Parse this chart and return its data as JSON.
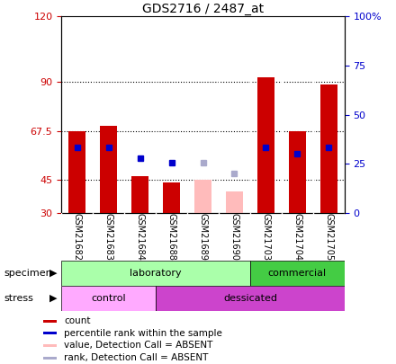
{
  "title": "GDS2716 / 2487_at",
  "samples": [
    "GSM21682",
    "GSM21683",
    "GSM21684",
    "GSM21688",
    "GSM21689",
    "GSM21690",
    "GSM21703",
    "GSM21704",
    "GSM21705"
  ],
  "bar_values": [
    67.5,
    70.0,
    47.0,
    44.0,
    null,
    null,
    92.0,
    67.5,
    89.0
  ],
  "bar_color_normal": "#cc0000",
  "bar_color_absent": "#ffbbbb",
  "absent_bar_values": [
    null,
    null,
    null,
    null,
    45.0,
    40.0,
    null,
    null,
    null
  ],
  "rank_dots_normal": [
    60.0,
    60.0,
    55.0,
    53.0,
    null,
    null,
    60.0,
    57.0,
    60.0
  ],
  "rank_dots_absent": [
    null,
    null,
    null,
    null,
    53.0,
    48.0,
    null,
    null,
    null
  ],
  "dot_color_normal": "#0000cc",
  "dot_color_absent": "#aaaacc",
  "ylim_left": [
    30,
    120
  ],
  "ylim_right": [
    0,
    100
  ],
  "left_yticks": [
    30,
    45,
    67.5,
    90,
    120
  ],
  "right_yticks": [
    0,
    25,
    50,
    75,
    100
  ],
  "left_ytick_labels": [
    "30",
    "45",
    "67.5",
    "90",
    "120"
  ],
  "right_ytick_labels": [
    "0",
    "25",
    "50",
    "75",
    "100%"
  ],
  "grid_lines": [
    45,
    67.5,
    90
  ],
  "specimen_groups": [
    {
      "label": "laboratory",
      "start": 0,
      "end": 6,
      "color": "#aaffaa"
    },
    {
      "label": "commercial",
      "start": 6,
      "end": 9,
      "color": "#44cc44"
    }
  ],
  "stress_groups": [
    {
      "label": "control",
      "start": 0,
      "end": 3,
      "color": "#ffaaff"
    },
    {
      "label": "dessicated",
      "start": 3,
      "end": 9,
      "color": "#cc44cc"
    }
  ],
  "legend_items": [
    {
      "color": "#cc0000",
      "label": "count"
    },
    {
      "color": "#0000cc",
      "label": "percentile rank within the sample"
    },
    {
      "color": "#ffbbbb",
      "label": "value, Detection Call = ABSENT"
    },
    {
      "color": "#aaaacc",
      "label": "rank, Detection Call = ABSENT"
    }
  ],
  "bar_width": 0.55,
  "background_color": "#ffffff",
  "tick_area_color": "#cccccc",
  "col_sep_color": "#ffffff"
}
